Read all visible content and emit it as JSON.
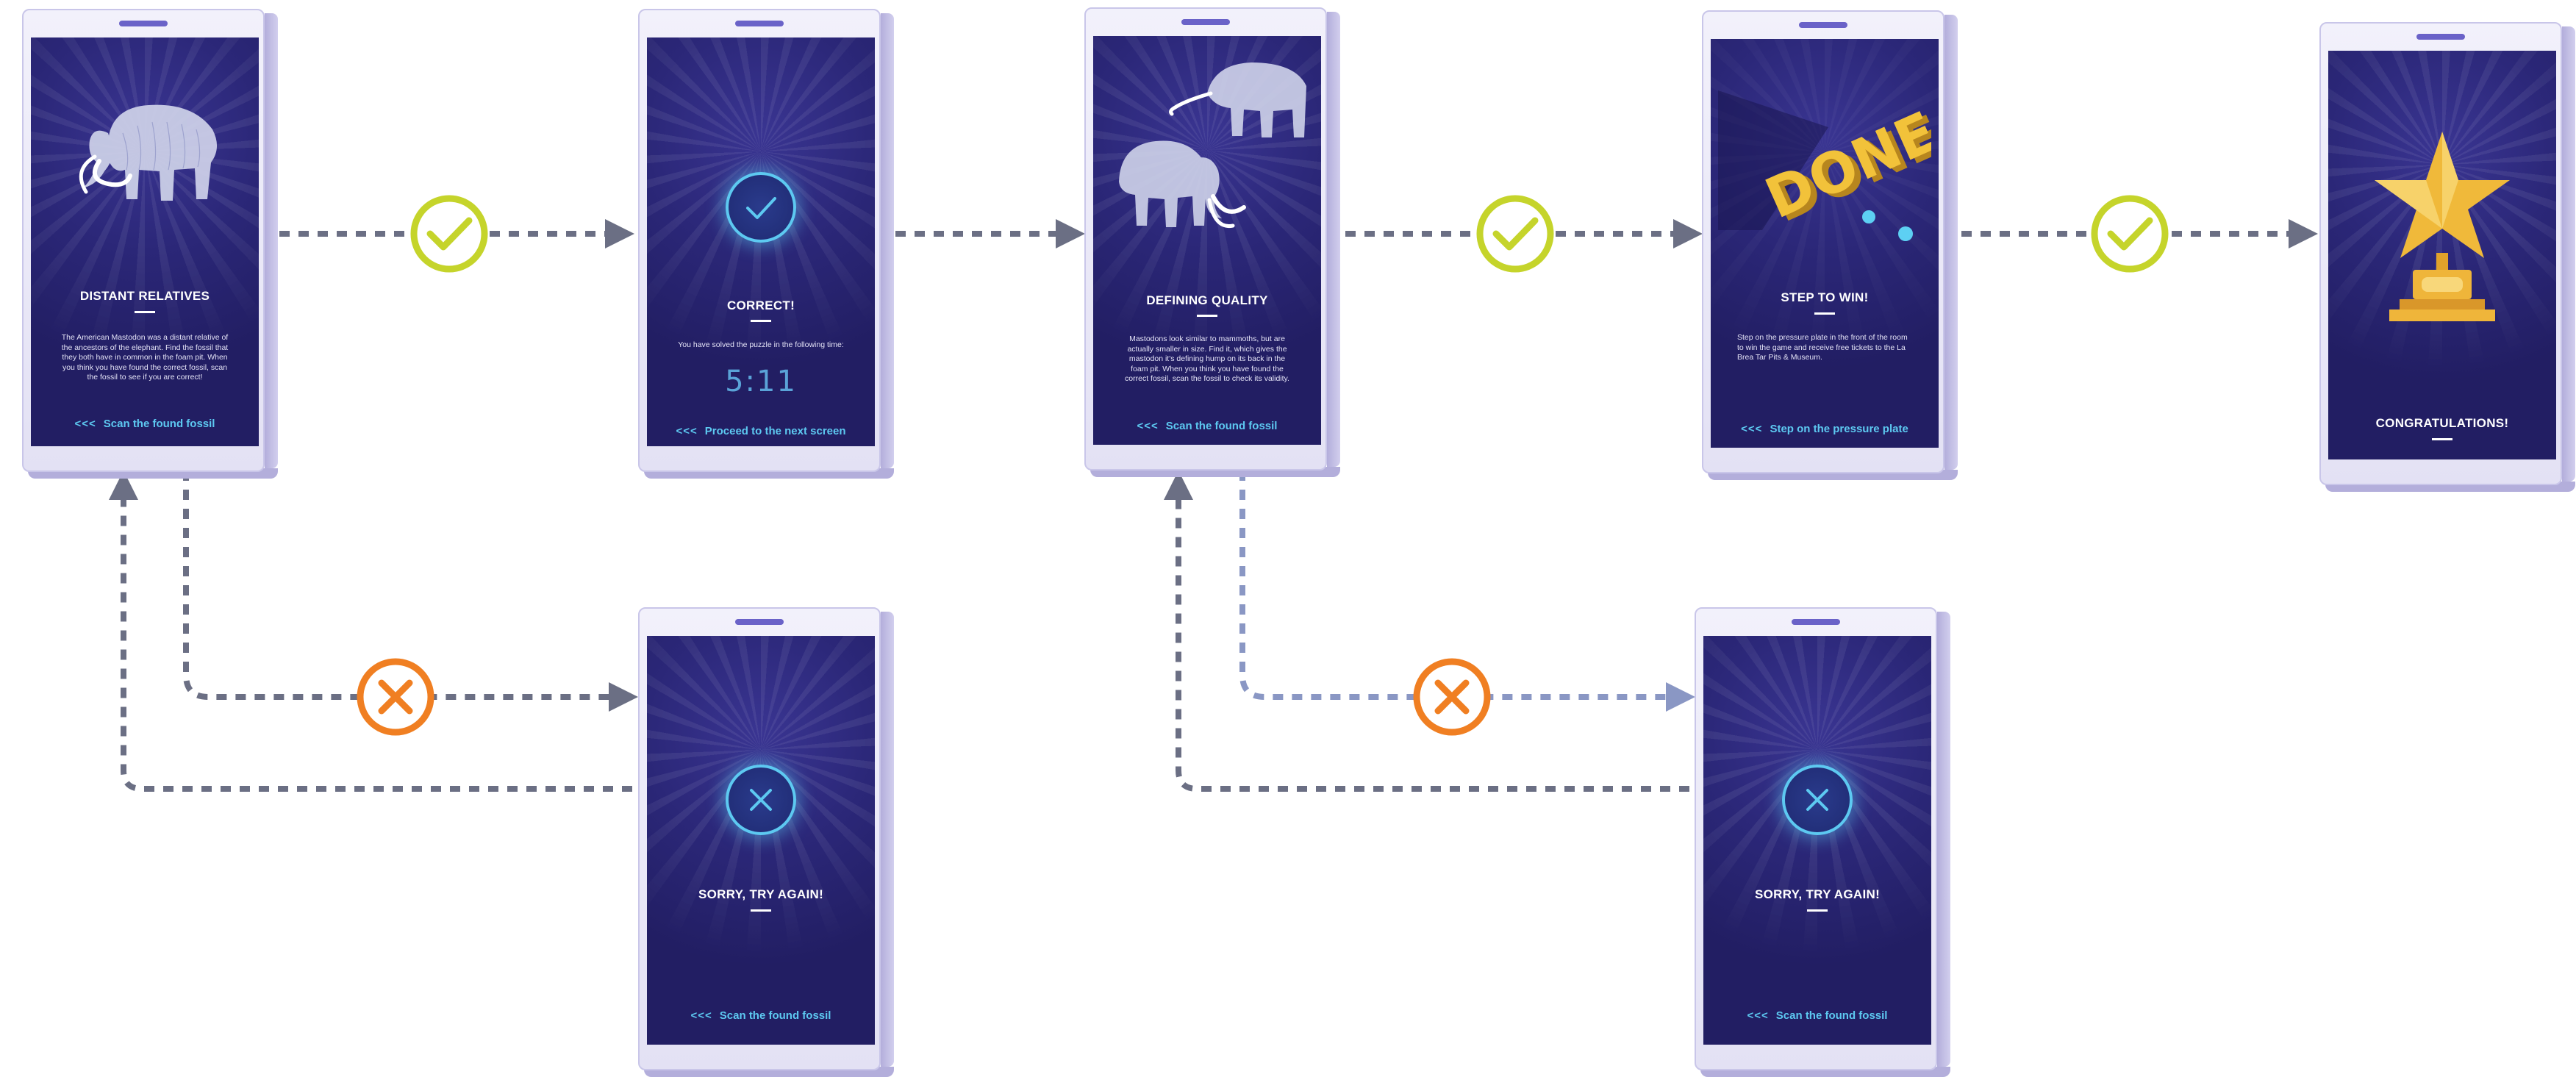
{
  "screens": {
    "s1": {
      "title": "DISTANT RELATIVES",
      "body": "The American Mastodon was a distant relative of the ancestors of the elephant. Find the fossil that they both have in common in the foam pit. When you think you have found the correct fossil, scan the fossil to see if you are correct!",
      "cta": "Scan the found fossil",
      "cta_icon": "<<<",
      "icon": "mammoth-illustration"
    },
    "s2": {
      "title": "CORRECT!",
      "body": "You have solved the puzzle in the following time:",
      "timer": "5:11",
      "cta": "Proceed to the next screen",
      "cta_icon": "<<<",
      "icon": "check-icon"
    },
    "s3": {
      "title": "DEFINING QUALITY",
      "body": "Mastodons look similar to mammoths, but are actually smaller in size. Find it, which gives the mastodon it's defining hump on its back in the foam pit.  When you think you have found the correct fossil, scan the fossil to check its validity.",
      "cta": "Scan the found fossil",
      "cta_icon": "<<<",
      "icon": "mastodon-illustrations"
    },
    "s4": {
      "title": "STEP TO WIN!",
      "body": "Step on the pressure plate in the front of the room to win the game and receive free tickets to the La Brea Tar Pits & Museum.",
      "art_text": "DONE",
      "cta": "Step on the pressure plate",
      "cta_icon": "<<<",
      "icon": "done-3d-text"
    },
    "s5": {
      "title": "CONGRATULATIONS!",
      "icon": "trophy-star-icon"
    },
    "s6": {
      "title": "SORRY, TRY AGAIN!",
      "cta": "Scan the found fossil",
      "cta_icon": "<<<",
      "icon": "x-icon"
    },
    "s7": {
      "title": "SORRY, TRY AGAIN!",
      "cta": "Scan the found fossil",
      "cta_icon": "<<<",
      "icon": "x-icon"
    }
  },
  "connectors": {
    "success_color": "#c5d42b",
    "fail_color": "#f07f22",
    "line_color": "#6b6f84",
    "line_color_light": "#8a97c4",
    "success_icon": "check-circle-icon",
    "fail_icon": "x-circle-icon"
  },
  "colors": {
    "screen_bg": "#221e63",
    "cta_text": "#5dc9f1",
    "phone_frame": "#e6e4f5",
    "phone_side": "#b3aedb"
  }
}
